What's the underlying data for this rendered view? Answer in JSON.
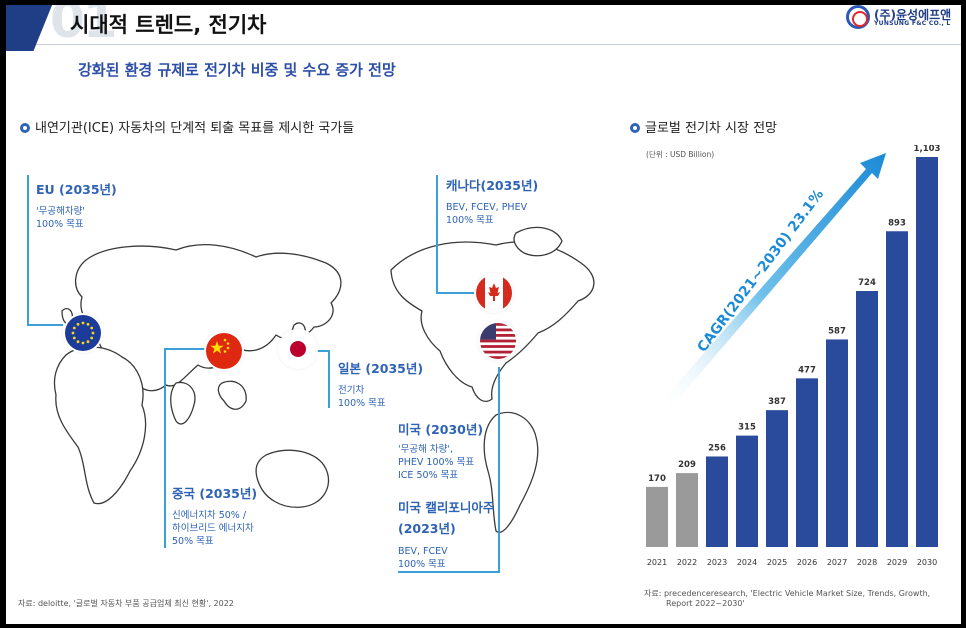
{
  "header": {
    "title": "시대적 트렌드, 전기차",
    "section_number": "01",
    "logo_name": "(주)윤성에프앤",
    "logo_sub": "YUNSUNG F&C CO., L"
  },
  "headline": "강화된 환경 규제로 전기차 비중 및 수요 증가 전망",
  "left_section": {
    "title": "내연기관(ICE) 자동차의 단계적 퇴출 목표를 제시한 국가들",
    "source": "자료: deloitte, '글로벌 자동차 부품 공급업체 최신 현황', 2022",
    "countries": {
      "eu": {
        "title": "EU (2035년)",
        "lines": [
          "'무공해차량'",
          "100% 목표"
        ]
      },
      "canada": {
        "title": "캐나다(2035년)",
        "lines": [
          "BEV, FCEV, PHEV",
          "100% 목표"
        ]
      },
      "japan": {
        "title": "일본 (2035년)",
        "lines": [
          "전기차",
          "100% 목표"
        ]
      },
      "usa": {
        "title": "미국 (2030년)",
        "lines": [
          "'무공해 차량',",
          "PHEV 100% 목표",
          "ICE 50% 목표"
        ]
      },
      "california": {
        "title": [
          "미국 캘리포니아주",
          "(2023년)"
        ],
        "lines": [
          "BEV, FCEV",
          "100% 목표"
        ]
      },
      "china": {
        "title": "중국 (2035년)",
        "lines": [
          "신에너지차 50% /",
          "하이브리드 에너지차",
          "50% 목표"
        ]
      }
    }
  },
  "right_section": {
    "title": "글로벌 전기차 시장 전망",
    "source": [
      "자료: precedenceresearch, 'Electric Vehicle Market Size, Trends, Growth,",
      "Report 2022~2030'"
    ]
  },
  "chart_data": {
    "type": "bar",
    "unit_label": "(단위 : USD Billion)",
    "categories": [
      "2021",
      "2022",
      "2023",
      "2024",
      "2025",
      "2026",
      "2027",
      "2028",
      "2029",
      "2030"
    ],
    "values": [
      170,
      209,
      256,
      315,
      387,
      477,
      587,
      724,
      893,
      1103
    ],
    "value_labels": [
      "170",
      "209",
      "256",
      "315",
      "387",
      "477",
      "587",
      "724",
      "893",
      "1,103"
    ],
    "annotation": "CAGR(2021~2030) 23.1%",
    "ylim": [
      0,
      1103
    ],
    "colors": {
      "actual": "#9a9a9a",
      "forecast": "#2a4a9c",
      "arrow": "#1f8ed6"
    }
  }
}
